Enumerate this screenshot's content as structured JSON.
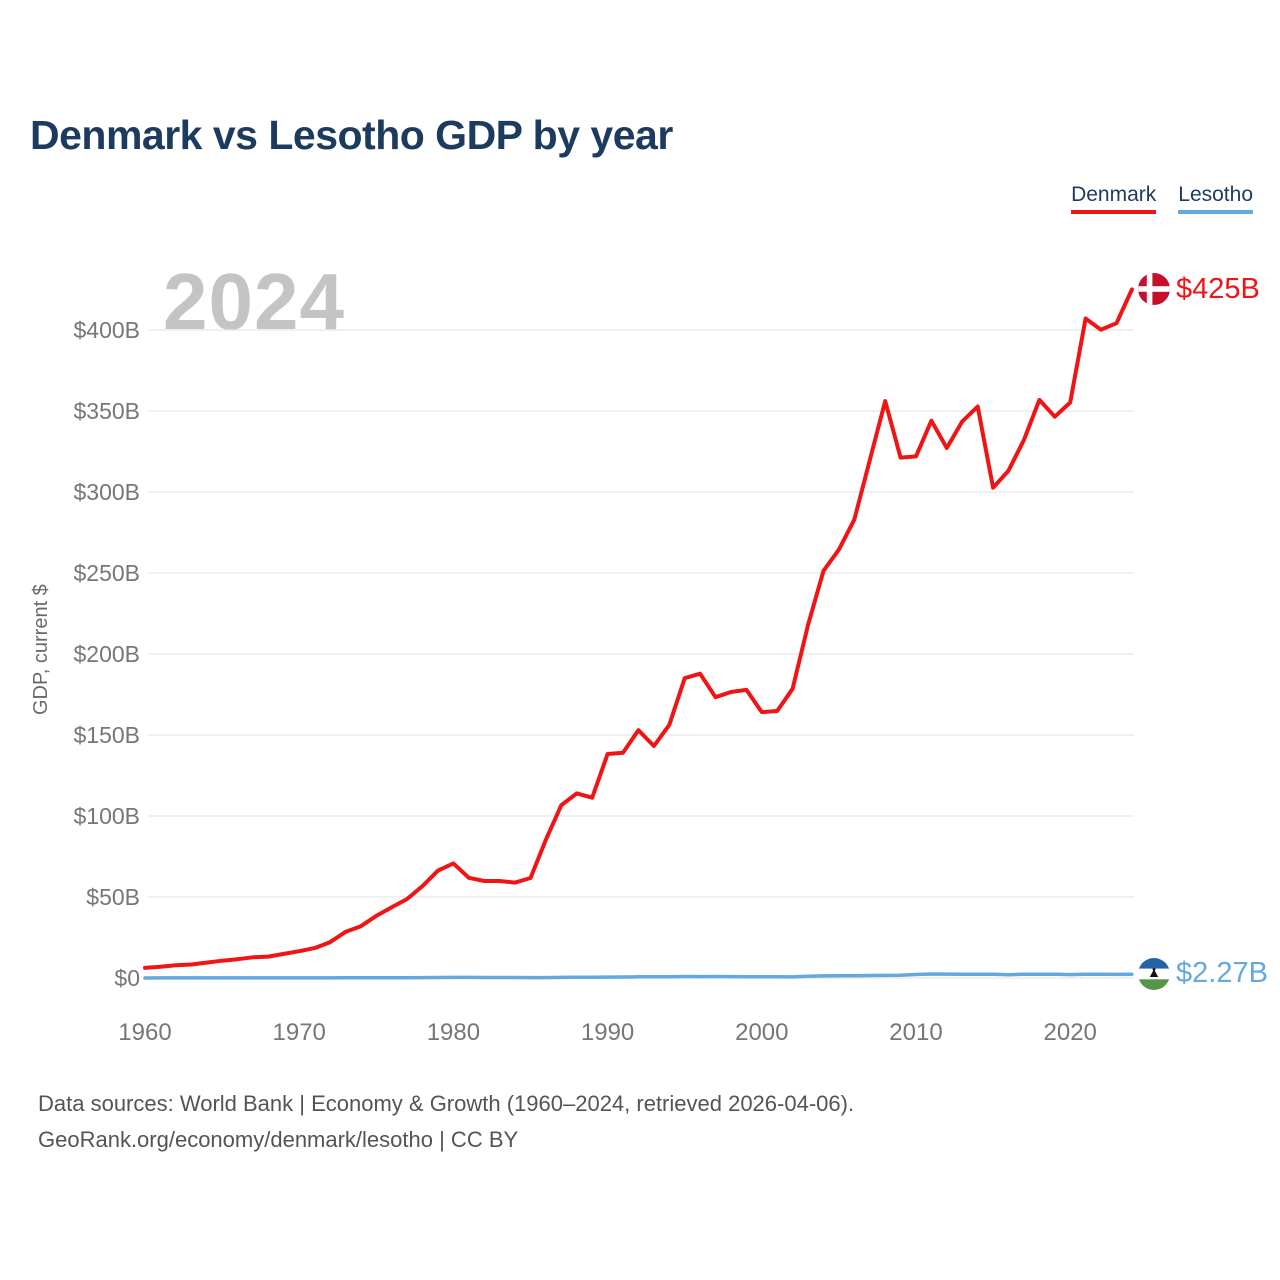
{
  "title": "Denmark vs Lesotho GDP by year",
  "legend": [
    {
      "label": "Denmark",
      "color": "#f01414"
    },
    {
      "label": "Lesotho",
      "color": "#64a8e0"
    }
  ],
  "watermark_year": "2024",
  "end_labels": {
    "denmark": "$425B",
    "lesotho": "$2.27B"
  },
  "footer": {
    "line1": "Data sources: World Bank | Economy & Growth (1960–2024, retrieved 2026-04-06).",
    "line2": "GeoRank.org/economy/denmark/lesotho | CC BY"
  },
  "chart_data": {
    "type": "line",
    "title": "Denmark vs Lesotho GDP by year",
    "xlabel": "",
    "ylabel": "GDP, current $",
    "xlim": [
      1960,
      2024
    ],
    "ylim": [
      0,
      430
    ],
    "grid": "horizontal",
    "legend_position": "top-right",
    "x_ticks": [
      1960,
      1970,
      1980,
      1990,
      2000,
      2010,
      2020
    ],
    "y_tick_labels": [
      "$0",
      "$50B",
      "$100B",
      "$150B",
      "$200B",
      "$250B",
      "$300B",
      "$350B",
      "$400B"
    ],
    "x": [
      1960,
      1961,
      1962,
      1963,
      1964,
      1965,
      1966,
      1967,
      1968,
      1969,
      1970,
      1971,
      1972,
      1973,
      1974,
      1975,
      1976,
      1977,
      1978,
      1979,
      1980,
      1981,
      1982,
      1983,
      1984,
      1985,
      1986,
      1987,
      1988,
      1989,
      1990,
      1991,
      1992,
      1993,
      1994,
      1995,
      1996,
      1997,
      1998,
      1999,
      2000,
      2001,
      2002,
      2003,
      2004,
      2005,
      2006,
      2007,
      2008,
      2009,
      2010,
      2011,
      2012,
      2013,
      2014,
      2015,
      2016,
      2017,
      2018,
      2019,
      2020,
      2021,
      2022,
      2023,
      2024
    ],
    "series": [
      {
        "name": "Lesotho",
        "color": "#64a8e0",
        "unit": "billion USD",
        "values": [
          0.03,
          0.04,
          0.04,
          0.04,
          0.05,
          0.05,
          0.05,
          0.06,
          0.06,
          0.06,
          0.07,
          0.08,
          0.08,
          0.11,
          0.14,
          0.16,
          0.17,
          0.21,
          0.26,
          0.3,
          0.37,
          0.36,
          0.32,
          0.33,
          0.29,
          0.24,
          0.26,
          0.34,
          0.41,
          0.43,
          0.55,
          0.61,
          0.72,
          0.73,
          0.79,
          0.9,
          0.89,
          0.92,
          0.84,
          0.82,
          0.83,
          0.72,
          0.7,
          1.02,
          1.27,
          1.37,
          1.43,
          1.56,
          1.59,
          1.74,
          2.17,
          2.45,
          2.38,
          2.26,
          2.34,
          2.26,
          2.0,
          2.26,
          2.37,
          2.27,
          2.12,
          2.37,
          2.27,
          2.22,
          2.27
        ]
      },
      {
        "name": "Denmark",
        "color": "#f01414",
        "unit": "billion USD",
        "values": [
          6.25,
          6.93,
          7.81,
          8.34,
          9.51,
          10.68,
          11.6,
          12.75,
          13.22,
          14.89,
          16.57,
          18.48,
          22.07,
          28.48,
          31.96,
          38.36,
          43.65,
          48.78,
          56.77,
          66.32,
          70.73,
          61.85,
          59.87,
          59.9,
          58.86,
          61.73,
          85.39,
          106.66,
          113.94,
          111.31,
          138.25,
          139.1,
          152.96,
          143.18,
          156.24,
          185.06,
          187.81,
          173.36,
          176.52,
          177.9,
          164.16,
          164.79,
          178.53,
          218.1,
          251.37,
          264.47,
          282.88,
          319.42,
          356.1,
          321.24,
          321.99,
          344.0,
          327.15,
          343.58,
          352.77,
          302.67,
          313.12,
          332.12,
          356.84,
          346.5,
          355.22,
          407.1,
          400.17,
          404.2,
          425.0
        ]
      }
    ],
    "end_values": {
      "Denmark": "$425B",
      "Lesotho": "$2.27B"
    }
  },
  "icons": {
    "denmark_flag": "denmark-flag-icon",
    "lesotho_flag": "lesotho-flag-icon"
  },
  "colors": {
    "title": "#1d3b5f",
    "axis_text": "#767676",
    "gridline": "#e8e8e8",
    "watermark": "#c4c4c4",
    "denmark_line": "#f01414",
    "lesotho_line": "#64a8e0",
    "denmark_flag_red": "#c8102e",
    "lesotho_flag_blue": "#2563a8",
    "lesotho_flag_green": "#55964a"
  }
}
